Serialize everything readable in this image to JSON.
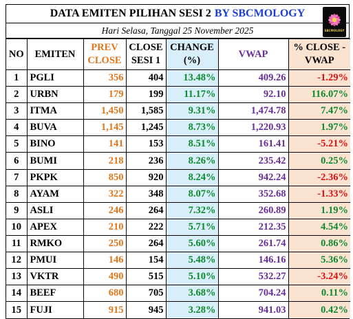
{
  "title": {
    "main": "DATA EMITEN PILIHAN SESI 2",
    "accent": "BY SBCMOLOGY"
  },
  "subtitle": "Hari Selasa, Tanggal 25 November 2025",
  "logo": {
    "icon": "lotus-flower-icon",
    "text": "SBCMOLOGY"
  },
  "colors": {
    "prev": "#e2761b",
    "change": "#0d8a2e",
    "change_bg": "#d8eef8",
    "vwap": "#6a2d9c",
    "pct_bg": "#fbe3d2",
    "negative": "#e01010",
    "accent": "#1f3fd0"
  },
  "headers": {
    "no": "NO",
    "emiten": "EMITEN",
    "prev_line1": "PREV",
    "prev_line2": "CLOSE",
    "close_line1": "CLOSE",
    "close_line2": "SESI 1",
    "change_line1": "CHANGE",
    "change_line2": "(%)",
    "vwap": "VWAP",
    "pct_line1": "% CLOSE -",
    "pct_line2": "VWAP"
  },
  "rows": [
    {
      "no": "1",
      "emiten": "PGLI",
      "prev": "356",
      "close": "404",
      "change": "13.48%",
      "vwap": "409.26",
      "pct": "-1.29%",
      "sign": "neg"
    },
    {
      "no": "2",
      "emiten": "URBN",
      "prev": "179",
      "close": "199",
      "change": "11.17%",
      "vwap": "92.10",
      "pct": "116.07%",
      "sign": "pos"
    },
    {
      "no": "3",
      "emiten": "ITMA",
      "prev": "1,450",
      "close": "1,585",
      "change": "9.31%",
      "vwap": "1,474.78",
      "pct": "7.47%",
      "sign": "pos"
    },
    {
      "no": "4",
      "emiten": "BUVA",
      "prev": "1,145",
      "close": "1,245",
      "change": "8.73%",
      "vwap": "1,220.93",
      "pct": "1.97%",
      "sign": "pos"
    },
    {
      "no": "5",
      "emiten": "BINO",
      "prev": "141",
      "close": "153",
      "change": "8.51%",
      "vwap": "161.41",
      "pct": "-5.21%",
      "sign": "neg"
    },
    {
      "no": "6",
      "emiten": "BUMI",
      "prev": "218",
      "close": "236",
      "change": "8.26%",
      "vwap": "235.42",
      "pct": "0.25%",
      "sign": "pos"
    },
    {
      "no": "7",
      "emiten": "PKPK",
      "prev": "850",
      "close": "920",
      "change": "8.24%",
      "vwap": "942.24",
      "pct": "-2.36%",
      "sign": "neg"
    },
    {
      "no": "8",
      "emiten": "AYAM",
      "prev": "322",
      "close": "348",
      "change": "8.07%",
      "vwap": "352.68",
      "pct": "-1.33%",
      "sign": "neg"
    },
    {
      "no": "9",
      "emiten": "ASLI",
      "prev": "246",
      "close": "264",
      "change": "7.32%",
      "vwap": "260.89",
      "pct": "1.19%",
      "sign": "pos"
    },
    {
      "no": "10",
      "emiten": "APEX",
      "prev": "210",
      "close": "222",
      "change": "5.71%",
      "vwap": "212.35",
      "pct": "4.54%",
      "sign": "pos"
    },
    {
      "no": "11",
      "emiten": "RMKO",
      "prev": "250",
      "close": "264",
      "change": "5.60%",
      "vwap": "261.74",
      "pct": "0.86%",
      "sign": "pos"
    },
    {
      "no": "12",
      "emiten": "PMUI",
      "prev": "146",
      "close": "154",
      "change": "5.48%",
      "vwap": "146.16",
      "pct": "5.36%",
      "sign": "pos"
    },
    {
      "no": "13",
      "emiten": "VKTR",
      "prev": "490",
      "close": "515",
      "change": "5.10%",
      "vwap": "532.27",
      "pct": "-3.24%",
      "sign": "neg"
    },
    {
      "no": "14",
      "emiten": "BEEF",
      "prev": "680",
      "close": "705",
      "change": "3.68%",
      "vwap": "704.24",
      "pct": "0.11%",
      "sign": "pos"
    },
    {
      "no": "15",
      "emiten": "FUJI",
      "prev": "915",
      "close": "945",
      "change": "3.28%",
      "vwap": "941.03",
      "pct": "0.42%",
      "sign": "pos"
    }
  ]
}
